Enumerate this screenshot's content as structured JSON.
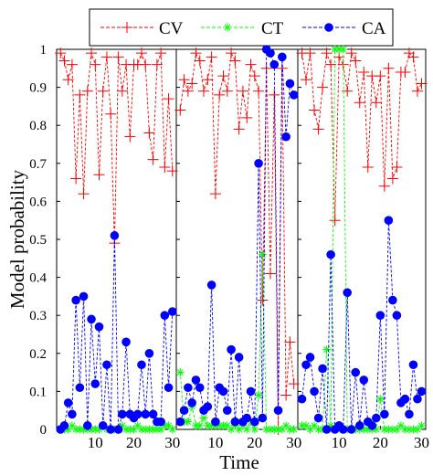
{
  "chart_data": {
    "type": "line",
    "ylabel": "Model probability",
    "xlabel": "Time",
    "ylim": [
      0,
      1
    ],
    "xlim": [
      0,
      31
    ],
    "yticks": [
      "0",
      "0.1",
      "0.2",
      "0.3",
      "0.4",
      "0.5",
      "0.6",
      "0.7",
      "0.8",
      "0.9",
      "1"
    ],
    "xticks": [
      "10",
      "20",
      "30"
    ],
    "legend": {
      "position": "top",
      "entries": [
        {
          "name": "CV",
          "color": "#ff0000",
          "marker": "plus"
        },
        {
          "name": "CT",
          "color": "#00ff00",
          "marker": "asterisk"
        },
        {
          "name": "CA",
          "color": "#0000ff",
          "marker": "filled-circle"
        }
      ]
    },
    "panels": [
      {
        "series": [
          {
            "name": "CV",
            "values": [
              0.99,
              0.97,
              0.92,
              0.96,
              0.66,
              0.88,
              0.62,
              0.89,
              0.99,
              0.96,
              0.67,
              0.89,
              0.98,
              0.83,
              0.49,
              0.98,
              0.89,
              0.96,
              0.77,
              0.96,
              0.96,
              0.99,
              0.96,
              0.78,
              0.71,
              0.96,
              0.99,
              0.69,
              0.87,
              0.68
            ]
          },
          {
            "name": "CT",
            "values": [
              0.0,
              0.0,
              0.0,
              0.01,
              0.0,
              0.0,
              0.0,
              0.0,
              0.0,
              0.0,
              0.0,
              0.01,
              0.0,
              0.0,
              0.0,
              0.0,
              0.01,
              0.0,
              0.0,
              0.0,
              0.01,
              0.0,
              0.0,
              0.0,
              0.0,
              0.0,
              0.0,
              0.01,
              0.01,
              0.0
            ]
          },
          {
            "name": "CA",
            "values": [
              0.0,
              0.01,
              0.07,
              0.04,
              0.34,
              0.11,
              0.35,
              0.01,
              0.29,
              0.12,
              0.27,
              0.01,
              0.17,
              0.0,
              0.51,
              0.0,
              0.04,
              0.23,
              0.04,
              0.03,
              0.04,
              0.17,
              0.04,
              0.2,
              0.04,
              0.02,
              0.02,
              0.3,
              0.11,
              0.31
            ]
          }
        ]
      },
      {
        "series": [
          {
            "name": "CV",
            "values": [
              0.84,
              0.92,
              0.89,
              0.91,
              0.99,
              0.97,
              0.89,
              0.92,
              0.98,
              0.62,
              0.88,
              0.93,
              0.89,
              0.99,
              0.97,
              0.79,
              0.89,
              0.82,
              0.96,
              0.93,
              0.89,
              0.34,
              0.95,
              0.41,
              0.88,
              0.0,
              0.95,
              0.09,
              0.23,
              0.12
            ]
          },
          {
            "name": "CT",
            "values": [
              0.15,
              0.02,
              0.02,
              0.06,
              0.01,
              0.01,
              0.03,
              0.01,
              0.01,
              0.01,
              0.01,
              0.01,
              0.01,
              0.0,
              0.01,
              0.0,
              0.01,
              0.0,
              0.02,
              0.0,
              0.09,
              0.46,
              0.0,
              0.0,
              0.0,
              0.0,
              0.0,
              0.01,
              0.0,
              0.0
            ]
          },
          {
            "name": "CA",
            "values": [
              0.02,
              0.05,
              0.11,
              0.07,
              0.13,
              0.11,
              0.05,
              0.06,
              0.38,
              0.02,
              0.11,
              0.1,
              0.05,
              0.21,
              0.02,
              0.19,
              0.02,
              0.03,
              0.1,
              0.02,
              0.7,
              0.03,
              1.0,
              0.99,
              0.96,
              0.05,
              0.98,
              0.77,
              0.91,
              0.88
            ]
          }
        ]
      },
      {
        "series": [
          {
            "name": "CV",
            "values": [
              0.99,
              0.92,
              0.99,
              0.84,
              0.79,
              0.9,
              0.99,
              0.96,
              0.55,
              0.98,
              0.96,
              0.89,
              0.99,
              0.97,
              0.86,
              0.94,
              0.69,
              0.93,
              0.86,
              0.93,
              0.64,
              0.95,
              0.66,
              0.69,
              0.94,
              0.94,
              0.99,
              0.98,
              0.89,
              0.91
            ]
          },
          {
            "name": "CT",
            "values": [
              0.01,
              0.01,
              0.0,
              0.01,
              0.0,
              0.0,
              0.21,
              0.01,
              1.0,
              1.0,
              1.0,
              0.0,
              0.0,
              0.0,
              0.0,
              0.0,
              0.0,
              0.0,
              0.0,
              0.08,
              0.0,
              0.0,
              0.0,
              0.0,
              0.01,
              0.0,
              0.0,
              0.0,
              0.0,
              0.01
            ]
          },
          {
            "name": "CA",
            "values": [
              0.08,
              0.17,
              0.19,
              0.1,
              0.03,
              0.16,
              0.0,
              0.46,
              0.0,
              0.01,
              0.0,
              0.36,
              0.0,
              0.15,
              0.01,
              0.13,
              0.02,
              0.01,
              0.03,
              0.3,
              0.04,
              0.55,
              0.34,
              0.3,
              0.07,
              0.08,
              0.04,
              0.17,
              0.08,
              0.1
            ]
          }
        ]
      }
    ]
  }
}
